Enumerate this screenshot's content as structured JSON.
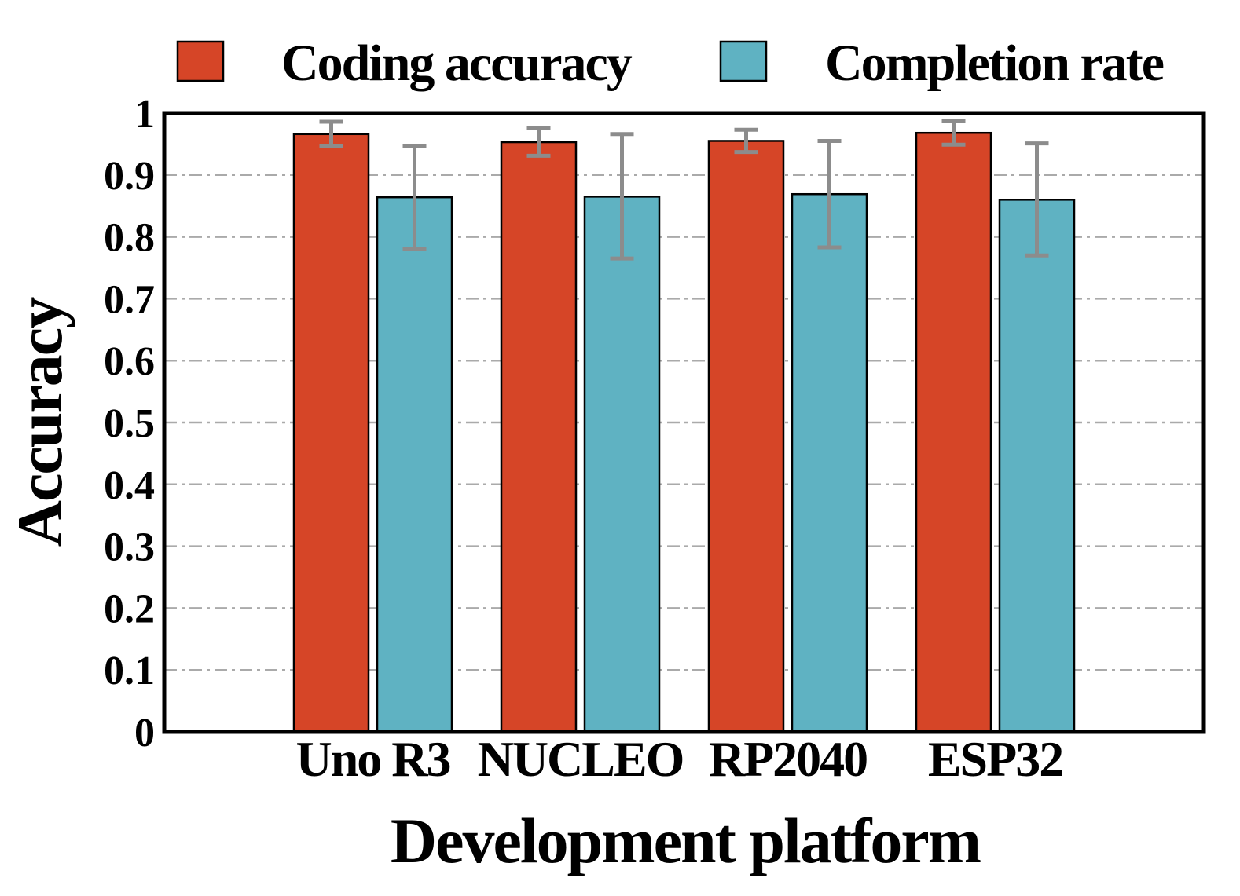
{
  "chart_data": {
    "type": "bar",
    "categories": [
      "Uno R3",
      "NUCLEO",
      "RP2040",
      "ESP32"
    ],
    "series": [
      {
        "name": "Coding accuracy",
        "color": "#d64527",
        "values": [
          0.966,
          0.953,
          0.955,
          0.968
        ],
        "error_low": [
          0.946,
          0.931,
          0.937,
          0.949
        ],
        "error_high": [
          0.986,
          0.976,
          0.973,
          0.987
        ]
      },
      {
        "name": "Completion rate",
        "color": "#5fb2c2",
        "values": [
          0.864,
          0.865,
          0.869,
          0.86
        ],
        "error_low": [
          0.78,
          0.765,
          0.783,
          0.77
        ],
        "error_high": [
          0.947,
          0.966,
          0.955,
          0.951
        ]
      }
    ],
    "yticks": [
      "0",
      "0.1",
      "0.2",
      "0.3",
      "0.4",
      "0.5",
      "0.6",
      "0.7",
      "0.8",
      "0.9",
      "1"
    ],
    "ylim": [
      0,
      1
    ],
    "xlabel": "Development platform",
    "ylabel": "Accuracy",
    "grid": true,
    "legend_position": "top",
    "error_bar_color": "#8c8c8c"
  }
}
